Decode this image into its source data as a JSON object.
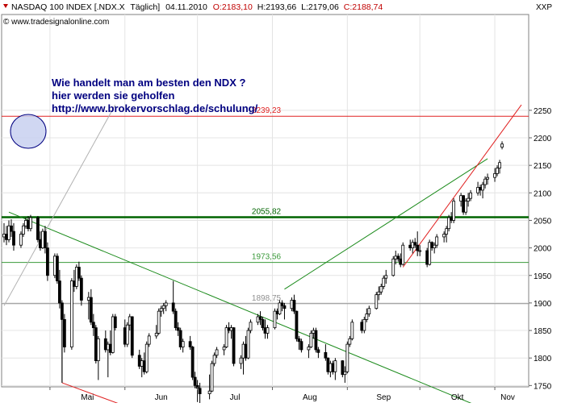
{
  "header": {
    "instrument": "NASDAQ 100 INDEX [.NDX.X",
    "interval": "Täglich]",
    "date": "04.11.2010",
    "open": "O:2183,10",
    "high": "H:2193,66",
    "low": "L:2179,06",
    "close": "C:2188,74",
    "source": "© www.tradesignalonline.com",
    "currency": "XXP"
  },
  "annotation": {
    "line1": "Wie handelt man am besten den NDX ?",
    "line2": "hier werden sie geholfen",
    "line3": "http://www.brokervorschlag.de/schulung/"
  },
  "colors": {
    "bull_candle": "#ffffff",
    "bear_candle": "#000000",
    "trendline_green": "#1a8a1a",
    "trendline_red": "#e02020",
    "support_dark_green": "#006400",
    "annotation_text": "#000080",
    "circle_fill": "#c8d0f0"
  },
  "chart_data": {
    "type": "candlestick",
    "ylim": [
      1700,
      2260
    ],
    "yticks": [
      1750,
      1800,
      1850,
      1900,
      1950,
      2000,
      2050,
      2100,
      2150,
      2200,
      2250
    ],
    "xticks": [
      "Mai",
      "Jun",
      "Jul",
      "Aug",
      "Sep",
      "Okt",
      "Nov"
    ],
    "x_range": [
      "2010-04-12",
      "2010-11-12"
    ],
    "horizontal_levels": [
      {
        "value": 2239.23,
        "label": "2239,23",
        "color": "#e02020"
      },
      {
        "value": 2055.82,
        "label": "2055,82",
        "color": "#006400"
      },
      {
        "value": 1973.56,
        "label": "1973,56",
        "color": "#3a9a3a"
      },
      {
        "value": 1898.75,
        "label": "1898,75",
        "color": "#909090"
      }
    ],
    "trendlines": [
      {
        "name": "green-down",
        "from": [
          "2010-04-14",
          2065
        ],
        "to": [
          "2010-11-01",
          1700
        ],
        "color": "#1a8a1a"
      },
      {
        "name": "green-up",
        "from": [
          "2010-08-06",
          1925
        ],
        "to": [
          "2010-10-29",
          2162
        ],
        "color": "#1a8a1a"
      },
      {
        "name": "red-up-channel",
        "from": [
          "2010-09-24",
          1965
        ],
        "to": [
          "2010-11-12",
          2260
        ],
        "color": "#e02020"
      },
      {
        "name": "red-low",
        "from": [
          "2010-05-06",
          1755
        ],
        "to": [
          "2010-06-09",
          1700
        ],
        "color": "#e02020"
      },
      {
        "name": "grey-fan",
        "from": [
          "2010-04-12",
          1895
        ],
        "to": [
          "2010-05-28",
          2260
        ],
        "color": "#b0b0b0"
      }
    ],
    "candles": [
      [
        "2010-04-12",
        2020,
        2045,
        2010,
        2025
      ],
      [
        "2010-04-13",
        2025,
        2040,
        2005,
        2015
      ],
      [
        "2010-04-14",
        2015,
        2050,
        2010,
        2040
      ],
      [
        "2010-04-15",
        2040,
        2052,
        2020,
        2030
      ],
      [
        "2010-04-16",
        2030,
        2045,
        1995,
        2005
      ],
      [
        "2010-04-19",
        2005,
        2030,
        2000,
        2025
      ],
      [
        "2010-04-20",
        2025,
        2045,
        2020,
        2040
      ],
      [
        "2010-04-21",
        2040,
        2055,
        2035,
        2050
      ],
      [
        "2010-04-22",
        2050,
        2058,
        2030,
        2035
      ],
      [
        "2010-04-23",
        2035,
        2060,
        2030,
        2055
      ],
      [
        "2010-04-26",
        2055,
        2058,
        2010,
        2015
      ],
      [
        "2010-04-27",
        2015,
        2030,
        1995,
        2000
      ],
      [
        "2010-04-28",
        2000,
        2035,
        1998,
        2030
      ],
      [
        "2010-04-29",
        2030,
        2040,
        1990,
        2000
      ],
      [
        "2010-04-30",
        2000,
        2010,
        1940,
        1950
      ],
      [
        "2010-05-03",
        1950,
        1990,
        1945,
        1985
      ],
      [
        "2010-05-04",
        1985,
        1990,
        1935,
        1940
      ],
      [
        "2010-05-05",
        1940,
        1960,
        1890,
        1900
      ],
      [
        "2010-05-06",
        1900,
        1905,
        1755,
        1870
      ],
      [
        "2010-05-07",
        1870,
        1880,
        1810,
        1820
      ],
      [
        "2010-05-10",
        1820,
        1945,
        1815,
        1940
      ],
      [
        "2010-05-11",
        1940,
        1960,
        1920,
        1930
      ],
      [
        "2010-05-12",
        1930,
        1970,
        1925,
        1965
      ],
      [
        "2010-05-13",
        1965,
        1975,
        1940,
        1945
      ],
      [
        "2010-05-14",
        1945,
        1950,
        1895,
        1905
      ],
      [
        "2010-05-17",
        1905,
        1920,
        1870,
        1910
      ],
      [
        "2010-05-18",
        1910,
        1925,
        1860,
        1865
      ],
      [
        "2010-05-19",
        1865,
        1880,
        1840,
        1855
      ],
      [
        "2010-05-20",
        1855,
        1860,
        1790,
        1795
      ],
      [
        "2010-05-21",
        1795,
        1840,
        1760,
        1835
      ],
      [
        "2010-05-24",
        1835,
        1850,
        1810,
        1815
      ],
      [
        "2010-05-25",
        1815,
        1830,
        1765,
        1825
      ],
      [
        "2010-05-26",
        1825,
        1850,
        1805,
        1810
      ],
      [
        "2010-05-27",
        1810,
        1880,
        1808,
        1875
      ],
      [
        "2010-05-28",
        1875,
        1880,
        1850,
        1855
      ],
      [
        "2010-06-01",
        1855,
        1870,
        1820,
        1825
      ],
      [
        "2010-06-02",
        1825,
        1865,
        1820,
        1860
      ],
      [
        "2010-06-03",
        1860,
        1880,
        1850,
        1875
      ],
      [
        "2010-06-04",
        1875,
        1876,
        1800,
        1805
      ],
      [
        "2010-06-07",
        1805,
        1815,
        1780,
        1785
      ],
      [
        "2010-06-08",
        1785,
        1800,
        1765,
        1795
      ],
      [
        "2010-06-09",
        1795,
        1810,
        1770,
        1775
      ],
      [
        "2010-06-10",
        1775,
        1830,
        1772,
        1825
      ],
      [
        "2010-06-11",
        1825,
        1845,
        1820,
        1840
      ],
      [
        "2010-06-14",
        1840,
        1860,
        1835,
        1845
      ],
      [
        "2010-06-15",
        1845,
        1890,
        1842,
        1885
      ],
      [
        "2010-06-16",
        1885,
        1895,
        1875,
        1890
      ],
      [
        "2010-06-17",
        1890,
        1900,
        1880,
        1895
      ],
      [
        "2010-06-18",
        1895,
        1905,
        1885,
        1900
      ],
      [
        "2010-06-21",
        1900,
        1940,
        1880,
        1885
      ],
      [
        "2010-06-22",
        1885,
        1890,
        1850,
        1855
      ],
      [
        "2010-06-23",
        1855,
        1865,
        1840,
        1850
      ],
      [
        "2010-06-24",
        1850,
        1855,
        1815,
        1820
      ],
      [
        "2010-06-25",
        1820,
        1835,
        1810,
        1830
      ],
      [
        "2010-06-28",
        1830,
        1840,
        1815,
        1820
      ],
      [
        "2010-06-29",
        1820,
        1822,
        1760,
        1765
      ],
      [
        "2010-06-30",
        1765,
        1775,
        1745,
        1750
      ],
      [
        "2010-07-01",
        1750,
        1760,
        1720,
        1745
      ],
      [
        "2010-07-02",
        1745,
        1755,
        1700,
        1735
      ],
      [
        "2010-07-06",
        1735,
        1770,
        1725,
        1740
      ],
      [
        "2010-07-07",
        1740,
        1795,
        1738,
        1790
      ],
      [
        "2010-07-08",
        1790,
        1810,
        1785,
        1805
      ],
      [
        "2010-07-09",
        1805,
        1820,
        1800,
        1815
      ],
      [
        "2010-07-12",
        1815,
        1825,
        1805,
        1820
      ],
      [
        "2010-07-13",
        1820,
        1860,
        1818,
        1855
      ],
      [
        "2010-07-14",
        1855,
        1865,
        1845,
        1850
      ],
      [
        "2010-07-15",
        1850,
        1860,
        1835,
        1855
      ],
      [
        "2010-07-16",
        1855,
        1856,
        1785,
        1790
      ],
      [
        "2010-07-19",
        1790,
        1805,
        1780,
        1800
      ],
      [
        "2010-07-20",
        1800,
        1830,
        1770,
        1825
      ],
      [
        "2010-07-21",
        1825,
        1840,
        1795,
        1800
      ],
      [
        "2010-07-22",
        1800,
        1855,
        1798,
        1850
      ],
      [
        "2010-07-23",
        1850,
        1870,
        1845,
        1865
      ],
      [
        "2010-07-26",
        1865,
        1880,
        1860,
        1875
      ],
      [
        "2010-07-27",
        1875,
        1885,
        1860,
        1870
      ],
      [
        "2010-07-28",
        1870,
        1875,
        1850,
        1855
      ],
      [
        "2010-07-29",
        1855,
        1870,
        1835,
        1845
      ],
      [
        "2010-07-30",
        1845,
        1860,
        1835,
        1855
      ],
      [
        "2010-08-02",
        1855,
        1890,
        1852,
        1885
      ],
      [
        "2010-08-03",
        1885,
        1890,
        1870,
        1880
      ],
      [
        "2010-08-04",
        1880,
        1905,
        1878,
        1900
      ],
      [
        "2010-08-05",
        1900,
        1905,
        1885,
        1895
      ],
      [
        "2010-08-06",
        1895,
        1900,
        1870,
        1890
      ],
      [
        "2010-08-09",
        1890,
        1910,
        1885,
        1905
      ],
      [
        "2010-08-10",
        1905,
        1915,
        1880,
        1885
      ],
      [
        "2010-08-11",
        1885,
        1886,
        1830,
        1835
      ],
      [
        "2010-08-12",
        1835,
        1840,
        1815,
        1830
      ],
      [
        "2010-08-13",
        1830,
        1835,
        1810,
        1815
      ],
      [
        "2010-08-16",
        1815,
        1825,
        1800,
        1820
      ],
      [
        "2010-08-17",
        1820,
        1850,
        1818,
        1845
      ],
      [
        "2010-08-18",
        1845,
        1855,
        1835,
        1850
      ],
      [
        "2010-08-19",
        1850,
        1855,
        1810,
        1815
      ],
      [
        "2010-08-20",
        1815,
        1820,
        1800,
        1810
      ],
      [
        "2010-08-23",
        1810,
        1825,
        1795,
        1800
      ],
      [
        "2010-08-24",
        1800,
        1801,
        1770,
        1775
      ],
      [
        "2010-08-25",
        1775,
        1795,
        1765,
        1790
      ],
      [
        "2010-08-26",
        1790,
        1795,
        1770,
        1775
      ],
      [
        "2010-08-27",
        1775,
        1800,
        1760,
        1795
      ],
      [
        "2010-08-30",
        1795,
        1796,
        1765,
        1770
      ],
      [
        "2010-08-31",
        1770,
        1785,
        1755,
        1775
      ],
      [
        "2010-09-01",
        1775,
        1830,
        1772,
        1825
      ],
      [
        "2010-09-02",
        1825,
        1840,
        1820,
        1835
      ],
      [
        "2010-09-03",
        1835,
        1870,
        1832,
        1865
      ],
      [
        "2010-09-07",
        1865,
        1870,
        1845,
        1850
      ],
      [
        "2010-09-08",
        1850,
        1875,
        1845,
        1870
      ],
      [
        "2010-09-09",
        1870,
        1890,
        1865,
        1880
      ],
      [
        "2010-09-10",
        1880,
        1895,
        1875,
        1890
      ],
      [
        "2010-09-13",
        1890,
        1920,
        1888,
        1915
      ],
      [
        "2010-09-14",
        1915,
        1930,
        1905,
        1920
      ],
      [
        "2010-09-15",
        1920,
        1935,
        1915,
        1930
      ],
      [
        "2010-09-16",
        1930,
        1950,
        1925,
        1945
      ],
      [
        "2010-09-17",
        1945,
        1960,
        1935,
        1950
      ],
      [
        "2010-09-20",
        1950,
        1985,
        1948,
        1980
      ],
      [
        "2010-09-21",
        1980,
        1995,
        1970,
        1985
      ],
      [
        "2010-09-22",
        1985,
        1990,
        1975,
        1980
      ],
      [
        "2010-09-23",
        1980,
        1990,
        1965,
        1970
      ],
      [
        "2010-09-24",
        1970,
        2010,
        1968,
        2005
      ],
      [
        "2010-09-27",
        2005,
        2015,
        1995,
        2000
      ],
      [
        "2010-09-28",
        2000,
        2015,
        1990,
        2010
      ],
      [
        "2010-09-29",
        2010,
        2018,
        2000,
        2005
      ],
      [
        "2010-09-30",
        2005,
        2030,
        1985,
        1995
      ],
      [
        "2010-10-01",
        1995,
        2005,
        1985,
        1995
      ],
      [
        "2010-10-04",
        1995,
        2000,
        1965,
        1970
      ],
      [
        "2010-10-05",
        1970,
        2015,
        1968,
        2010
      ],
      [
        "2010-10-06",
        2010,
        2012,
        1995,
        2000
      ],
      [
        "2010-10-07",
        2000,
        2010,
        1990,
        2005
      ],
      [
        "2010-10-08",
        2005,
        2025,
        2000,
        2020
      ],
      [
        "2010-10-11",
        2020,
        2030,
        2010,
        2025
      ],
      [
        "2010-10-12",
        2025,
        2040,
        2010,
        2035
      ],
      [
        "2010-10-13",
        2035,
        2060,
        2030,
        2055
      ],
      [
        "2010-10-14",
        2055,
        2065,
        2045,
        2050
      ],
      [
        "2010-10-15",
        2050,
        2090,
        2045,
        2085
      ],
      [
        "2010-10-18",
        2085,
        2100,
        2075,
        2095
      ],
      [
        "2010-10-19",
        2095,
        2096,
        2060,
        2065
      ],
      [
        "2010-10-20",
        2065,
        2090,
        2060,
        2085
      ],
      [
        "2010-10-21",
        2085,
        2100,
        2075,
        2090
      ],
      [
        "2010-10-22",
        2090,
        2105,
        2085,
        2100
      ],
      [
        "2010-10-25",
        2100,
        2120,
        2095,
        2110
      ],
      [
        "2010-10-26",
        2110,
        2115,
        2095,
        2105
      ],
      [
        "2010-10-27",
        2105,
        2120,
        2090,
        2115
      ],
      [
        "2010-10-28",
        2115,
        2130,
        2108,
        2125
      ],
      [
        "2010-10-29",
        2125,
        2135,
        2115,
        2128
      ],
      [
        "2010-11-01",
        2128,
        2145,
        2120,
        2135
      ],
      [
        "2010-11-02",
        2135,
        2150,
        2130,
        2145
      ],
      [
        "2010-11-03",
        2145,
        2160,
        2135,
        2155
      ],
      [
        "2010-11-04",
        2183.1,
        2193.66,
        2179.06,
        2188.74
      ]
    ]
  }
}
